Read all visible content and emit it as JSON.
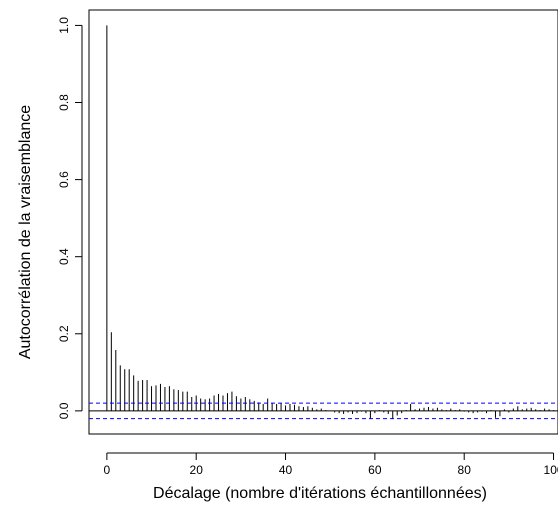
{
  "chart_data": {
    "type": "bar",
    "xlabel": "Décalage (nombre d'itérations échantillonnées)",
    "ylabel": "Autocorrélation de la vraisemblance",
    "x_ticks": [
      0,
      20,
      40,
      60,
      80,
      100
    ],
    "x_tick_labels": [
      "0",
      "20",
      "40",
      "60",
      "80",
      "100"
    ],
    "y_ticks": [
      0.0,
      0.2,
      0.4,
      0.6,
      0.8,
      1.0
    ],
    "y_tick_labels": [
      "0.0",
      "0.2",
      "0.4",
      "0.6",
      "0.8",
      "1.0"
    ],
    "xlim": [
      -4,
      101
    ],
    "ylim": [
      -0.06,
      1.04
    ],
    "confidence_band": [
      0.02,
      -0.02
    ],
    "colors": {
      "bars": "#000000",
      "confidence": "#0000ff",
      "zero_line": "#000000"
    },
    "grid": false,
    "lags": [
      0,
      1,
      2,
      3,
      4,
      5,
      6,
      7,
      8,
      9,
      10,
      11,
      12,
      13,
      14,
      15,
      16,
      17,
      18,
      19,
      20,
      21,
      22,
      23,
      24,
      25,
      26,
      27,
      28,
      29,
      30,
      31,
      32,
      33,
      34,
      35,
      36,
      37,
      38,
      39,
      40,
      41,
      42,
      43,
      44,
      45,
      46,
      47,
      48,
      49,
      50,
      51,
      52,
      53,
      54,
      55,
      56,
      57,
      58,
      59,
      60,
      61,
      62,
      63,
      64,
      65,
      66,
      67,
      68,
      69,
      70,
      71,
      72,
      73,
      74,
      75,
      76,
      77,
      78,
      79,
      80,
      81,
      82,
      83,
      84,
      85,
      86,
      87,
      88,
      89,
      90,
      91,
      92,
      93,
      94,
      95,
      96,
      97,
      98,
      99,
      100
    ],
    "values": [
      1.0,
      0.204,
      0.158,
      0.118,
      0.108,
      0.108,
      0.092,
      0.078,
      0.08,
      0.08,
      0.064,
      0.066,
      0.07,
      0.062,
      0.064,
      0.056,
      0.054,
      0.05,
      0.05,
      0.036,
      0.04,
      0.032,
      0.03,
      0.032,
      0.04,
      0.044,
      0.04,
      0.046,
      0.05,
      0.038,
      0.032,
      0.036,
      0.03,
      0.026,
      0.022,
      0.018,
      0.032,
      0.02,
      0.018,
      0.02,
      0.014,
      0.018,
      0.016,
      0.012,
      0.01,
      0.012,
      0.008,
      0.004,
      0.006,
      0.002,
      0.0,
      -0.004,
      -0.006,
      -0.008,
      -0.004,
      -0.008,
      -0.006,
      -0.002,
      -0.006,
      -0.02,
      -0.006,
      0.002,
      -0.004,
      -0.008,
      -0.02,
      -0.012,
      -0.006,
      0.002,
      0.018,
      0.004,
      0.006,
      0.008,
      0.01,
      0.006,
      0.008,
      0.004,
      0.002,
      0.006,
      0.002,
      0.004,
      -0.002,
      -0.004,
      -0.006,
      -0.004,
      -0.002,
      -0.006,
      0.002,
      -0.018,
      -0.014,
      0.004,
      -0.004,
      0.006,
      0.012,
      0.004,
      0.006,
      0.008,
      0.004,
      0.002,
      0.006,
      0.004,
      0.002
    ]
  }
}
